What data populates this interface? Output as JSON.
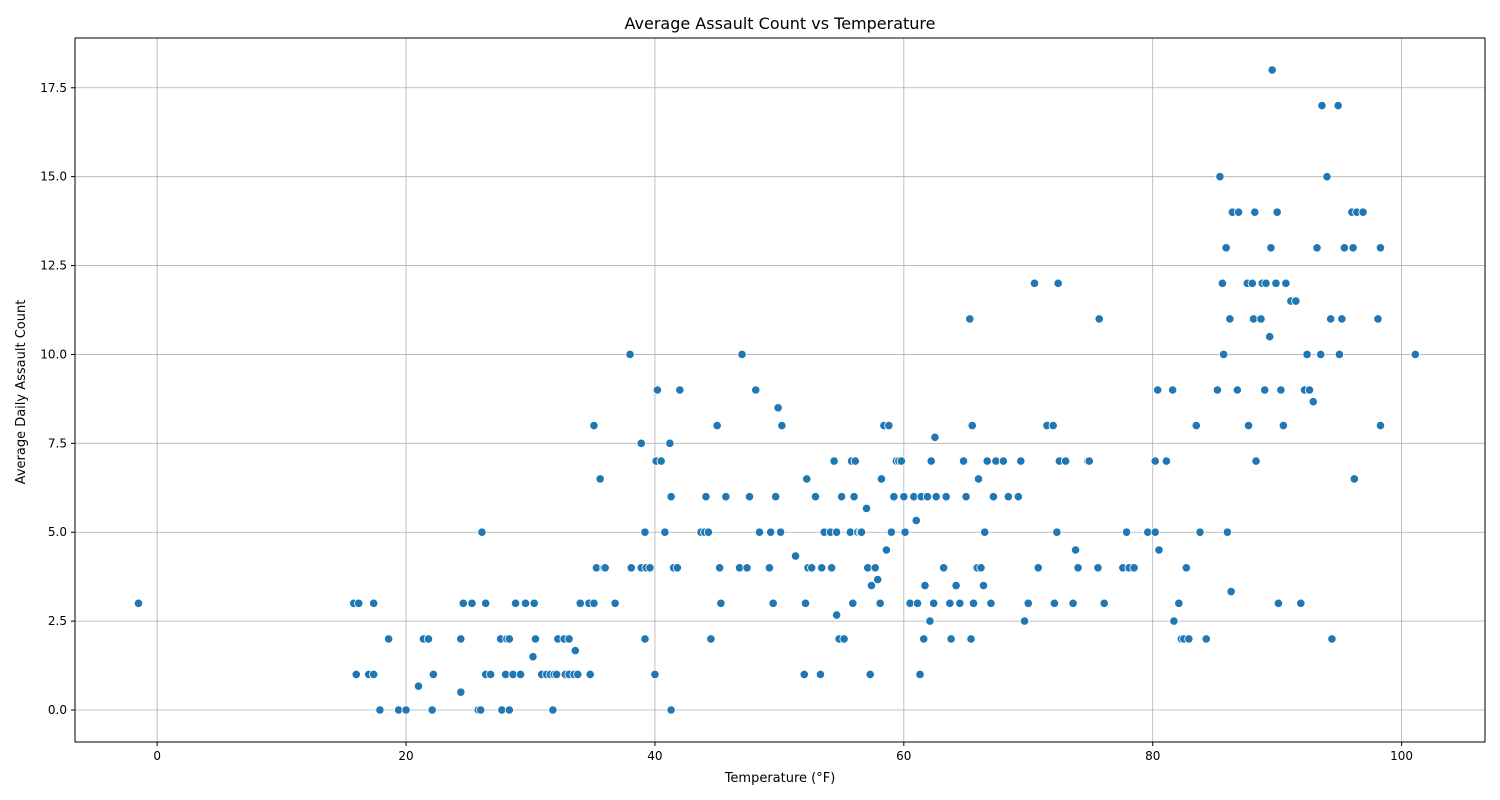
{
  "chart_data": {
    "type": "scatter",
    "title": "Average Assault Count vs Temperature",
    "xlabel": "Temperature (°F)",
    "ylabel": "Average Daily Assault Count",
    "xlim": [
      -6.6,
      106.7
    ],
    "ylim": [
      -0.9,
      18.9
    ],
    "xticks": [
      0,
      20,
      40,
      60,
      80,
      100
    ],
    "yticks": [
      0.0,
      2.5,
      5.0,
      7.5,
      10.0,
      12.5,
      15.0,
      17.5
    ],
    "xtick_labels": [
      "0",
      "20",
      "40",
      "60",
      "80",
      "100"
    ],
    "ytick_labels": [
      "0.0",
      "2.5",
      "5.0",
      "7.5",
      "10.0",
      "12.5",
      "15.0",
      "17.5"
    ],
    "grid": true,
    "marker_color": "#1f77b4",
    "points": [
      [
        -1.5,
        3
      ],
      [
        15.8,
        3
      ],
      [
        16.2,
        3
      ],
      [
        17.4,
        3
      ],
      [
        16,
        1
      ],
      [
        17,
        1
      ],
      [
        17.4,
        1
      ],
      [
        18.6,
        2
      ],
      [
        17.9,
        0
      ],
      [
        19.4,
        0
      ],
      [
        20,
        0
      ],
      [
        21,
        0.67
      ],
      [
        21.4,
        2
      ],
      [
        21.8,
        2
      ],
      [
        22.1,
        0
      ],
      [
        22.2,
        1
      ],
      [
        24.4,
        0.5
      ],
      [
        24.4,
        2
      ],
      [
        24.6,
        3
      ],
      [
        25.3,
        3
      ],
      [
        25.8,
        0
      ],
      [
        26,
        0
      ],
      [
        26.1,
        5
      ],
      [
        26.4,
        1
      ],
      [
        26.4,
        3
      ],
      [
        26.8,
        1
      ],
      [
        27.6,
        2
      ],
      [
        27.7,
        0
      ],
      [
        28,
        1
      ],
      [
        28.1,
        2
      ],
      [
        28.3,
        2
      ],
      [
        28.3,
        0
      ],
      [
        28.6,
        1
      ],
      [
        28.8,
        3
      ],
      [
        29.2,
        1
      ],
      [
        29.6,
        3
      ],
      [
        30.2,
        1.5
      ],
      [
        30.3,
        3
      ],
      [
        30.4,
        2
      ],
      [
        30.9,
        1
      ],
      [
        31.3,
        1
      ],
      [
        31.6,
        1
      ],
      [
        31.8,
        0
      ],
      [
        31.9,
        1
      ],
      [
        32.1,
        1
      ],
      [
        32.2,
        2
      ],
      [
        32.7,
        2
      ],
      [
        32.8,
        1
      ],
      [
        33.1,
        2
      ],
      [
        33.1,
        1
      ],
      [
        33.5,
        1
      ],
      [
        33.6,
        1.67
      ],
      [
        33.8,
        1
      ],
      [
        34,
        3
      ],
      [
        34.7,
        3
      ],
      [
        34.8,
        1
      ],
      [
        35.1,
        3
      ],
      [
        35.1,
        8
      ],
      [
        35.3,
        4
      ],
      [
        35.6,
        6.5
      ],
      [
        35.9,
        4
      ],
      [
        36,
        4
      ],
      [
        36.8,
        3
      ],
      [
        38,
        10
      ],
      [
        38.1,
        4
      ],
      [
        38.9,
        7.5
      ],
      [
        38.9,
        4
      ],
      [
        39.2,
        5
      ],
      [
        39.2,
        2
      ],
      [
        39.3,
        4
      ],
      [
        39.6,
        4
      ],
      [
        40,
        1
      ],
      [
        40.1,
        7
      ],
      [
        40.2,
        9
      ],
      [
        40.5,
        7
      ],
      [
        40.8,
        5
      ],
      [
        41.2,
        7.5
      ],
      [
        41.3,
        6
      ],
      [
        41.3,
        0
      ],
      [
        41.5,
        4
      ],
      [
        41.8,
        4
      ],
      [
        42,
        9
      ],
      [
        43.7,
        5
      ],
      [
        44,
        5
      ],
      [
        44.1,
        6
      ],
      [
        44.3,
        5
      ],
      [
        44.5,
        2
      ],
      [
        45,
        8
      ],
      [
        45.2,
        4
      ],
      [
        45.3,
        3
      ],
      [
        45.7,
        6
      ],
      [
        46.8,
        4
      ],
      [
        47,
        10
      ],
      [
        47.4,
        4
      ],
      [
        47.6,
        6
      ],
      [
        48.1,
        9
      ],
      [
        48.4,
        5
      ],
      [
        49.2,
        4
      ],
      [
        49.3,
        5
      ],
      [
        49.5,
        3
      ],
      [
        49.7,
        6
      ],
      [
        49.9,
        8.5
      ],
      [
        50.1,
        5
      ],
      [
        50.2,
        8
      ],
      [
        51.3,
        4.33
      ],
      [
        52,
        1
      ],
      [
        52.1,
        3
      ],
      [
        52.2,
        6.5
      ],
      [
        52.3,
        4
      ],
      [
        52.6,
        4
      ],
      [
        52.9,
        6
      ],
      [
        53.3,
        1
      ],
      [
        53.4,
        4
      ],
      [
        53.6,
        5
      ],
      [
        54.1,
        5
      ],
      [
        54.2,
        4
      ],
      [
        54.4,
        7
      ],
      [
        54.6,
        5
      ],
      [
        54.6,
        2.67
      ],
      [
        54.8,
        2
      ],
      [
        55,
        6
      ],
      [
        55.2,
        2
      ],
      [
        55.7,
        5
      ],
      [
        55.8,
        7
      ],
      [
        55.9,
        3
      ],
      [
        56,
        6
      ],
      [
        56.1,
        7
      ],
      [
        56.3,
        5
      ],
      [
        56.5,
        5
      ],
      [
        56.6,
        5
      ],
      [
        57,
        5.67
      ],
      [
        57.1,
        4
      ],
      [
        57.3,
        1
      ],
      [
        57.4,
        3.5
      ],
      [
        57.7,
        4
      ],
      [
        57.9,
        3.67
      ],
      [
        58.1,
        3
      ],
      [
        58.2,
        6.5
      ],
      [
        58.4,
        8
      ],
      [
        58.6,
        4.5
      ],
      [
        58.8,
        8
      ],
      [
        59,
        5
      ],
      [
        59.2,
        6
      ],
      [
        59.4,
        7
      ],
      [
        59.6,
        7
      ],
      [
        59.8,
        7
      ],
      [
        60,
        6
      ],
      [
        60.1,
        5
      ],
      [
        60.5,
        3
      ],
      [
        60.8,
        6
      ],
      [
        61,
        5.33
      ],
      [
        61.1,
        3
      ],
      [
        61.3,
        1
      ],
      [
        61.4,
        6
      ],
      [
        61.6,
        2
      ],
      [
        61.7,
        3.5
      ],
      [
        61.9,
        6
      ],
      [
        62.1,
        2.5
      ],
      [
        62.2,
        7
      ],
      [
        62.4,
        3
      ],
      [
        62.5,
        7.67
      ],
      [
        62.6,
        6
      ],
      [
        63.2,
        4
      ],
      [
        63.4,
        6
      ],
      [
        63.7,
        3
      ],
      [
        63.8,
        2
      ],
      [
        64.2,
        3.5
      ],
      [
        64.5,
        3
      ],
      [
        64.8,
        7
      ],
      [
        65,
        6
      ],
      [
        65.3,
        11
      ],
      [
        65.4,
        2
      ],
      [
        65.5,
        8
      ],
      [
        65.6,
        3
      ],
      [
        65.9,
        4
      ],
      [
        66,
        6.5
      ],
      [
        66.2,
        4
      ],
      [
        66.4,
        3.5
      ],
      [
        66.5,
        5
      ],
      [
        66.7,
        7
      ],
      [
        67,
        3
      ],
      [
        67.2,
        6
      ],
      [
        67.4,
        7
      ],
      [
        68,
        7
      ],
      [
        68.4,
        6
      ],
      [
        69.2,
        6
      ],
      [
        69.4,
        7
      ],
      [
        69.7,
        2.5
      ],
      [
        70,
        3
      ],
      [
        70.5,
        12
      ],
      [
        70.8,
        4
      ],
      [
        71.5,
        8
      ],
      [
        72,
        8
      ],
      [
        72.1,
        3
      ],
      [
        72.3,
        5
      ],
      [
        72.4,
        12
      ],
      [
        72.5,
        7
      ],
      [
        73,
        7
      ],
      [
        73.6,
        3
      ],
      [
        73.8,
        4.5
      ],
      [
        74,
        4
      ],
      [
        74.8,
        7
      ],
      [
        74.9,
        7
      ],
      [
        75.6,
        4
      ],
      [
        75.7,
        11
      ],
      [
        76.1,
        3
      ],
      [
        77.6,
        4
      ],
      [
        77.9,
        5
      ],
      [
        78.1,
        4
      ],
      [
        78.5,
        4
      ],
      [
        79.6,
        5
      ],
      [
        80.2,
        7
      ],
      [
        80.2,
        5
      ],
      [
        80.4,
        9
      ],
      [
        80.5,
        4.5
      ],
      [
        81.1,
        7
      ],
      [
        81.6,
        9
      ],
      [
        81.7,
        2.5
      ],
      [
        82.1,
        3
      ],
      [
        82.3,
        2
      ],
      [
        82.5,
        2
      ],
      [
        82.7,
        4
      ],
      [
        82.9,
        2
      ],
      [
        83.5,
        8
      ],
      [
        83.8,
        5
      ],
      [
        84.3,
        2
      ],
      [
        85.2,
        9
      ],
      [
        85.4,
        15
      ],
      [
        85.6,
        12
      ],
      [
        85.7,
        10
      ],
      [
        85.9,
        13
      ],
      [
        86,
        5
      ],
      [
        86.2,
        11
      ],
      [
        86.3,
        3.33
      ],
      [
        86.4,
        14
      ],
      [
        86.8,
        9
      ],
      [
        86.9,
        14
      ],
      [
        87.6,
        12
      ],
      [
        87.7,
        8
      ],
      [
        88,
        12
      ],
      [
        88.1,
        11
      ],
      [
        88.2,
        14
      ],
      [
        88.3,
        7
      ],
      [
        88.7,
        11
      ],
      [
        88.8,
        12
      ],
      [
        89,
        9
      ],
      [
        89.1,
        12
      ],
      [
        89.4,
        10.5
      ],
      [
        89.5,
        13
      ],
      [
        89.6,
        18
      ],
      [
        89.9,
        12
      ],
      [
        90,
        14
      ],
      [
        90.1,
        3
      ],
      [
        90.3,
        9
      ],
      [
        90.5,
        8
      ],
      [
        90.7,
        12
      ],
      [
        91.1,
        11.5
      ],
      [
        91.5,
        11.5
      ],
      [
        91.9,
        3
      ],
      [
        92.2,
        9
      ],
      [
        92.4,
        10
      ],
      [
        92.6,
        9
      ],
      [
        92.9,
        8.67
      ],
      [
        93.2,
        13
      ],
      [
        93.5,
        10
      ],
      [
        93.6,
        17
      ],
      [
        94,
        15
      ],
      [
        94.3,
        11
      ],
      [
        94.4,
        2
      ],
      [
        94.9,
        17
      ],
      [
        95,
        10
      ],
      [
        95.2,
        11
      ],
      [
        95.4,
        13
      ],
      [
        96,
        14
      ],
      [
        96.1,
        13
      ],
      [
        96.2,
        6.5
      ],
      [
        96.4,
        14
      ],
      [
        96.9,
        14
      ],
      [
        98.1,
        11
      ],
      [
        98.3,
        8
      ],
      [
        98.3,
        13
      ],
      [
        101.1,
        10
      ]
    ]
  }
}
